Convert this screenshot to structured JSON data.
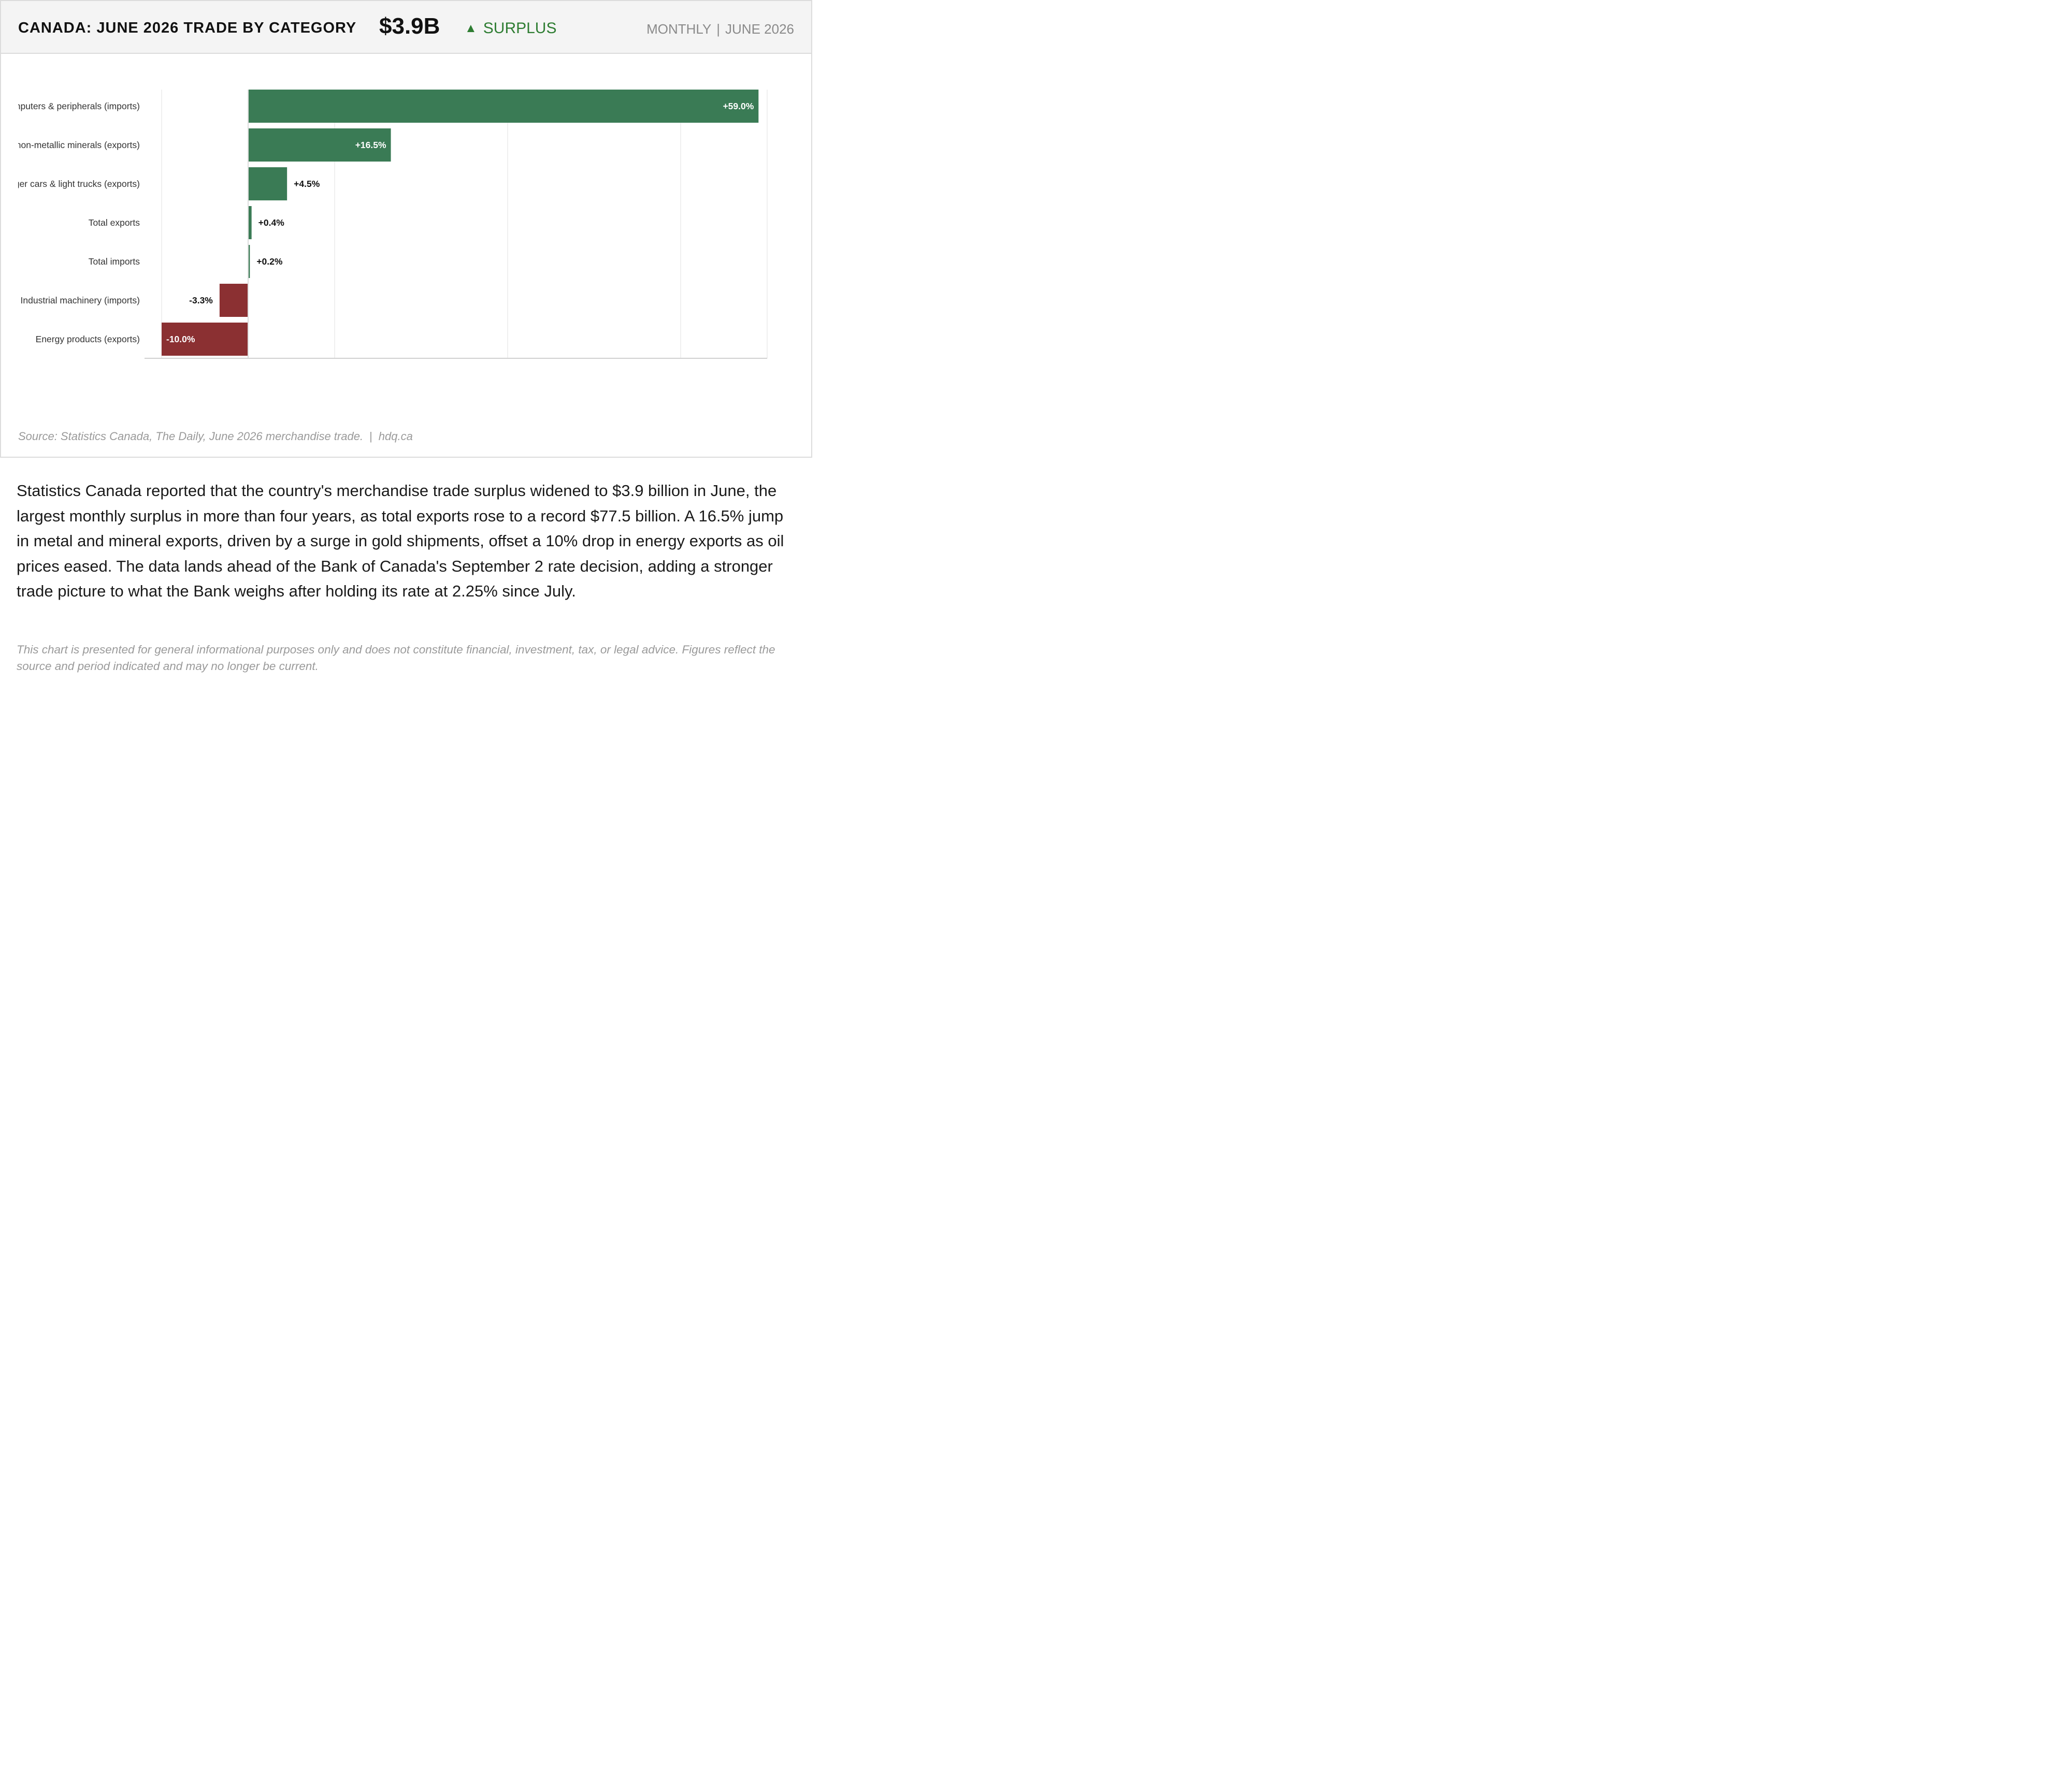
{
  "header": {
    "title": "CANADA: JUNE 2026 TRADE BY CATEGORY",
    "headline_value": "$3.9B",
    "status_icon": "triangle-up-icon",
    "status_label": "SURPLUS",
    "frequency": "MONTHLY",
    "period": "JUNE 2026"
  },
  "colors": {
    "positive": "#3a7b55",
    "negative": "#8b3032",
    "status": "#2e7d32"
  },
  "chart_data": {
    "type": "bar",
    "orientation": "horizontal",
    "categories": [
      "Computers & peripherals (imports)",
      "Metal & non-metallic minerals (exports)",
      "Passenger cars & light trucks (exports)",
      "Total exports",
      "Total imports",
      "Industrial machinery (imports)",
      "Energy products (exports)"
    ],
    "values": [
      59.0,
      16.5,
      4.5,
      0.4,
      0.2,
      -3.3,
      -10.0
    ],
    "value_labels": [
      "+59.0%",
      "+16.5%",
      "+4.5%",
      "+0.4%",
      "+0.2%",
      "-3.3%",
      "-10.0%"
    ],
    "unit": "% change",
    "xlim": [
      -10,
      60
    ],
    "gridlines_at": [
      -10,
      10,
      30,
      50,
      60
    ],
    "grid": true,
    "x_tick_labels": false,
    "title": "",
    "xlabel": "",
    "ylabel": ""
  },
  "source": {
    "text": "Source: Statistics Canada, The Daily, June 2026 merchandise trade.",
    "separator": "|",
    "site": "hdq.ca"
  },
  "summary": "Statistics Canada reported that the country's merchandise trade surplus widened to $3.9 billion in June, the largest monthly surplus in more than four years, as total exports rose to a record $77.5 billion. A 16.5% jump in metal and mineral exports, driven by a surge in gold shipments, offset a 10% drop in energy exports as oil prices eased. The data lands ahead of the Bank of Canada's September 2 rate decision, adding a stronger trade picture to what the Bank weighs after holding its rate at 2.25% since July.",
  "disclaimer": "This chart is presented for general informational purposes only and does not constitute financial, investment, tax, or legal advice. Figures reflect the source and period indicated and may no longer be current."
}
